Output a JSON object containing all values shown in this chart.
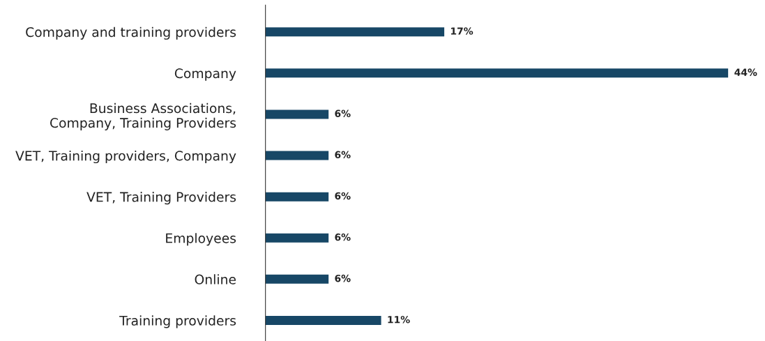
{
  "chart_data": {
    "type": "bar",
    "orientation": "horizontal",
    "categories": [
      "Company and training providers",
      "Company",
      "Business Associations,\nCompany, Training Providers",
      "VET, Training providers, Company",
      "VET, Training Providers",
      "Employees",
      "Online",
      "Training providers"
    ],
    "values": [
      17,
      44,
      6,
      6,
      6,
      6,
      6,
      11
    ],
    "value_labels": [
      "17%",
      "44%",
      "6%",
      "6%",
      "6%",
      "6%",
      "6%",
      "11%"
    ],
    "color": "#174766",
    "grid": false,
    "tick_labels": "y"
  }
}
